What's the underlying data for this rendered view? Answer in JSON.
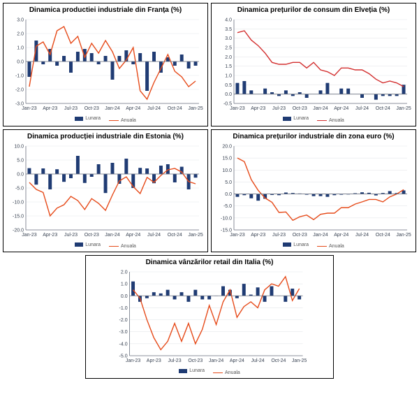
{
  "legend_labels": {
    "bar": "Lunara",
    "line": "Anuala"
  },
  "x_labels": [
    "Jan-23",
    "Apr-23",
    "Jul-23",
    "Oct-23",
    "Jan-24",
    "Apr-24",
    "Jul-24",
    "Oct-24",
    "Jan-25"
  ],
  "charts": [
    {
      "id": "france",
      "title": "Dinamica productiei industriale din Franța (%)",
      "ymin": -3.0,
      "ymax": 3.0,
      "ystep": 1.0,
      "bar_color": "#1f3b73",
      "line_color": "#e64a19",
      "title_fontsize": 10,
      "bars": [
        -1.1,
        1.5,
        -0.2,
        0.9,
        -0.3,
        0.4,
        -0.8,
        0.7,
        0.9,
        0.6,
        -0.2,
        0.4,
        -1.3,
        0.4,
        0.8,
        -0.2,
        0.6,
        -2.1,
        0.7,
        -0.8,
        0.3,
        -0.3,
        0.5,
        -0.5,
        -0.3
      ],
      "line": [
        -1.8,
        1.1,
        1.4,
        0.5,
        2.2,
        2.5,
        1.3,
        1.8,
        0.3,
        1.3,
        0.6,
        1.5,
        0.7,
        -0.5,
        0.1,
        1.0,
        -2.1,
        -2.7,
        -1.5,
        -0.5,
        0.5,
        -0.7,
        -1.1,
        -1.8,
        -1.4
      ]
    },
    {
      "id": "swiss",
      "title": "Dinamica prețurilor de consum din Elveția (%)",
      "ymin": -0.5,
      "ymax": 4.0,
      "ystep": 0.5,
      "bar_color": "#1f3b73",
      "line_color": "#d32f2f",
      "title_fontsize": 10,
      "bars": [
        0.6,
        0.7,
        0.2,
        0.0,
        0.3,
        0.1,
        -0.1,
        0.2,
        -0.1,
        0.1,
        -0.2,
        0.0,
        0.2,
        0.6,
        0.0,
        0.3,
        0.3,
        0.0,
        -0.2,
        0.0,
        -0.3,
        -0.1,
        -0.1,
        -0.1,
        0.5
      ],
      "line": [
        3.3,
        3.4,
        2.9,
        2.6,
        2.2,
        1.7,
        1.6,
        1.6,
        1.7,
        1.7,
        1.4,
        1.7,
        1.3,
        1.2,
        1.0,
        1.4,
        1.4,
        1.3,
        1.3,
        1.1,
        0.8,
        0.6,
        0.7,
        0.6,
        0.4
      ]
    },
    {
      "id": "estonia",
      "title": "Dinamica producției industriale din Estonia (%)",
      "ymin": -20.0,
      "ymax": 10.0,
      "ystep": 5.0,
      "bar_color": "#1f3b73",
      "line_color": "#e64a19",
      "title_fontsize": 10,
      "bars": [
        2.1,
        -3.8,
        2.0,
        -5.5,
        1.7,
        -2.8,
        -1.5,
        6.5,
        -3.2,
        -1.0,
        3.5,
        -6.8,
        4.0,
        -3.5,
        5.5,
        -5.0,
        2.2,
        2.0,
        -3.3,
        3.0,
        3.5,
        -3.0,
        2.6,
        -5.5,
        -1.3
      ],
      "line": [
        -3.0,
        -5.5,
        -6.6,
        -15.0,
        -12.2,
        -11.0,
        -8.0,
        -9.5,
        -12.7,
        -8.8,
        -10.5,
        -13.0,
        -7.5,
        -2.5,
        -1.0,
        -4.5,
        -7.0,
        -1.2,
        -3.0,
        -0.5,
        1.5,
        2.0,
        0.7,
        -2.7,
        -3.5
      ]
    },
    {
      "id": "euro",
      "title": "Dinamica prețurilor industriale din zona euro (%)",
      "ymin": -15.0,
      "ymax": 20.0,
      "ystep": 5.0,
      "bar_color": "#1f3b73",
      "line_color": "#e64a19",
      "title_fontsize": 10,
      "bars": [
        -1.2,
        -0.5,
        -1.8,
        -2.8,
        -2.0,
        -0.4,
        -0.5,
        0.6,
        0.4,
        0.2,
        -0.3,
        -0.9,
        -0.9,
        -1.2,
        -0.5,
        -0.3,
        -0.2,
        0.3,
        0.7,
        0.5,
        -0.6,
        0.4,
        1.2,
        0.4,
        1.5
      ],
      "line": [
        15.0,
        13.5,
        6.0,
        1.5,
        -1.7,
        -3.5,
        -7.7,
        -7.5,
        -11.0,
        -9.5,
        -8.8,
        -10.7,
        -8.5,
        -8.0,
        -8.0,
        -5.7,
        -5.7,
        -4.2,
        -3.3,
        -2.3,
        -2.3,
        -3.3,
        -1.2,
        0.0,
        1.8
      ]
    },
    {
      "id": "italy",
      "title": "Dinamica vânzărilor retail din Italia (%)",
      "ymin": -5.0,
      "ymax": 2.0,
      "ystep": 1.0,
      "bar_color": "#1f3b73",
      "line_color": "#e64a19",
      "title_fontsize": 10,
      "bars": [
        1.2,
        -0.5,
        -0.2,
        0.3,
        0.2,
        0.5,
        -0.3,
        0.3,
        -0.5,
        0.5,
        -0.3,
        -0.3,
        0.0,
        0.8,
        0.5,
        -0.2,
        1.0,
        0.1,
        0.7,
        -0.5,
        0.8,
        0.0,
        -0.5,
        0.6,
        -0.3
      ],
      "line": [
        0.5,
        -0.2,
        -2.0,
        -3.5,
        -4.5,
        -3.8,
        -2.3,
        -3.8,
        -2.3,
        -4.0,
        -2.8,
        -0.8,
        -2.4,
        -0.5,
        0.5,
        -1.8,
        -0.9,
        -0.5,
        -1.0,
        0.5,
        1.0,
        0.8,
        1.6,
        -0.4,
        0.6
      ]
    }
  ]
}
